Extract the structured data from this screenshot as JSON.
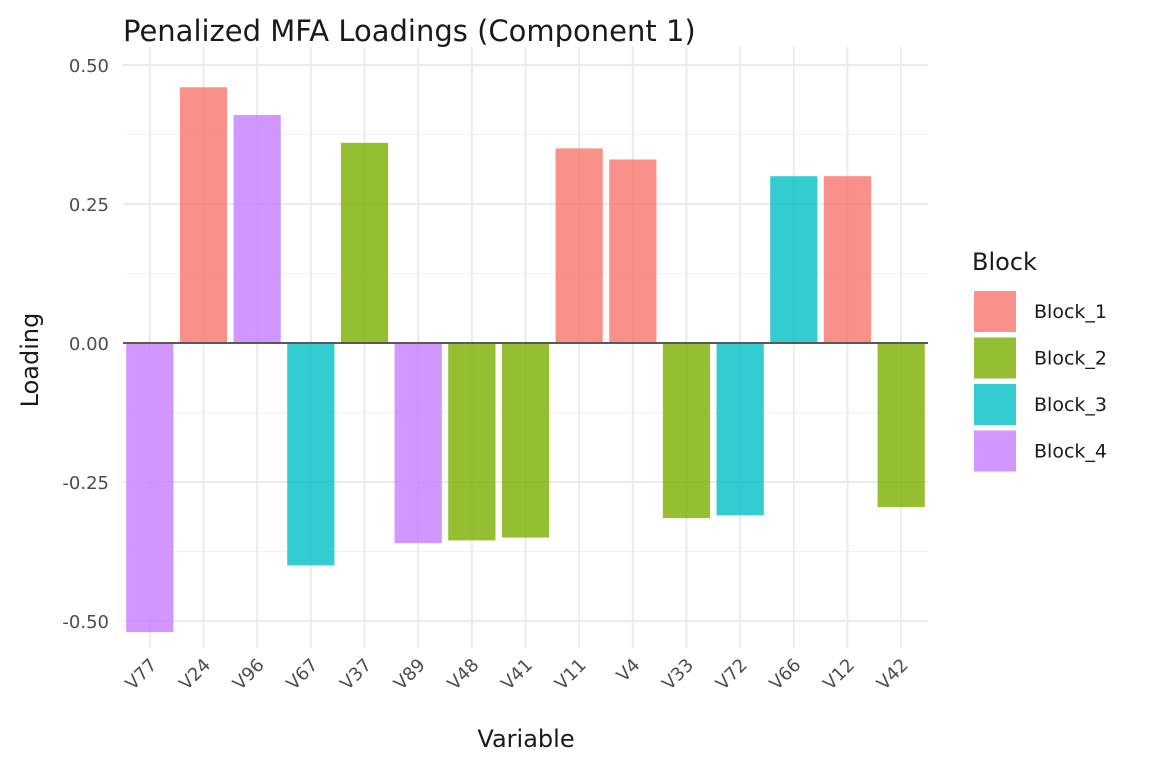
{
  "chart_data": {
    "type": "bar",
    "title": "Penalized MFA Loadings (Component 1)",
    "xlabel": "Variable",
    "ylabel": "Loading",
    "ylim": [
      -0.55,
      0.5
    ],
    "yticks": [
      0.5,
      0.25,
      0.0,
      -0.25,
      -0.5
    ],
    "ytick_labels": [
      "0.50",
      "0.25",
      "0.00",
      "-0.25",
      "-0.50"
    ],
    "grid": true,
    "legend_position": "right",
    "legend_title": "Block",
    "legend": [
      {
        "name": "Block_1",
        "color": "#F8766D"
      },
      {
        "name": "Block_2",
        "color": "#7CAE00"
      },
      {
        "name": "Block_3",
        "color": "#00BFC4"
      },
      {
        "name": "Block_4",
        "color": "#C77CFF"
      }
    ],
    "categories": [
      "V77",
      "V24",
      "V96",
      "V67",
      "V37",
      "V89",
      "V48",
      "V41",
      "V11",
      "V4",
      "V33",
      "V72",
      "V66",
      "V12",
      "V42"
    ],
    "values": [
      -0.52,
      0.46,
      0.41,
      -0.4,
      0.36,
      -0.36,
      -0.355,
      -0.35,
      0.35,
      0.33,
      -0.315,
      -0.31,
      0.3,
      0.3,
      -0.295
    ],
    "blocks": [
      "Block_4",
      "Block_1",
      "Block_4",
      "Block_3",
      "Block_2",
      "Block_4",
      "Block_2",
      "Block_2",
      "Block_1",
      "Block_1",
      "Block_2",
      "Block_3",
      "Block_3",
      "Block_1",
      "Block_2"
    ]
  }
}
